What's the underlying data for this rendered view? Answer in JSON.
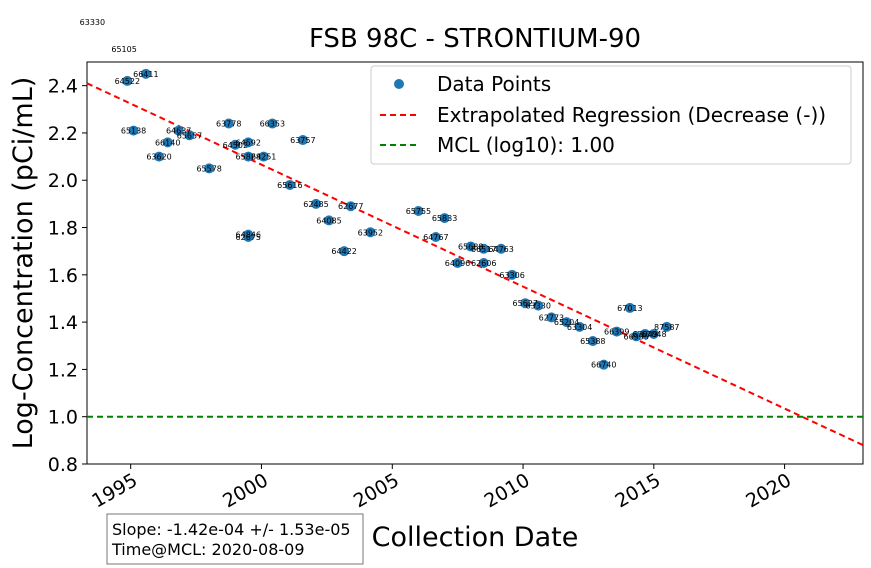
{
  "chart_data": {
    "type": "scatter",
    "title": "FSB 98C - STRONTIUM-90",
    "xlabel": "Collection Date",
    "ylabel": "Log-Concentration (pCi/mL)",
    "xlim": [
      "1993-05-01",
      "2022-12-31"
    ],
    "ylim": [
      0.8,
      2.5
    ],
    "x_ticks": [
      "1995",
      "2000",
      "2005",
      "2010",
      "2015",
      "2020"
    ],
    "y_ticks": [
      "0.8",
      "1.0",
      "1.2",
      "1.4",
      "1.6",
      "1.8",
      "2.0",
      "2.2",
      "2.4"
    ],
    "legend": {
      "placement": "upper-right",
      "entries": [
        "Data Points",
        "Extrapolated Regression (Decrease (-))",
        "MCL (log10): 1.00"
      ]
    },
    "colors": {
      "points": "#1f77b4",
      "regression": "#ff0000",
      "mcl": "#008000"
    },
    "mcl_value": 1.0,
    "regression": {
      "x": [
        "1993-05-01",
        "2022-12-31"
      ],
      "y": [
        2.41,
        0.88
      ]
    },
    "stats": {
      "line1": "Slope: -1.42e-04 +/- 1.53e-05",
      "line2": "Time@MCL: 2020-08-09"
    },
    "offchart_labels": [
      {
        "label": "63330",
        "x": "1993-07-15",
        "y": 2.67
      },
      {
        "label": "65105",
        "x": "1994-10-01",
        "y": 2.556
      }
    ],
    "points": [
      {
        "label": "64522",
        "x": "1994-11-15",
        "y": 2.42
      },
      {
        "label": "66411",
        "x": "1995-08-01",
        "y": 2.45
      },
      {
        "label": "65138",
        "x": "1995-02-10",
        "y": 2.21
      },
      {
        "label": "64637",
        "x": "1996-11-01",
        "y": 2.21
      },
      {
        "label": "65657",
        "x": "1997-04-01",
        "y": 2.19
      },
      {
        "label": "66140",
        "x": "1996-06-01",
        "y": 2.16
      },
      {
        "label": "63620",
        "x": "1996-02-01",
        "y": 2.1
      },
      {
        "label": "63778",
        "x": "1998-10-01",
        "y": 2.24
      },
      {
        "label": "66353",
        "x": "2000-06-01",
        "y": 2.24
      },
      {
        "label": "64502",
        "x": "1999-01-01",
        "y": 2.15
      },
      {
        "label": "64592",
        "x": "1999-07-01",
        "y": 2.16
      },
      {
        "label": "63757",
        "x": "2001-08-01",
        "y": 2.17
      },
      {
        "label": "65828",
        "x": "1999-07-01",
        "y": 2.1
      },
      {
        "label": "64251",
        "x": "2000-02-01",
        "y": 2.1
      },
      {
        "label": "65578",
        "x": "1998-01-01",
        "y": 2.05
      },
      {
        "label": "65616",
        "x": "2001-02-01",
        "y": 1.98
      },
      {
        "label": "62485",
        "x": "2002-02-01",
        "y": 1.9
      },
      {
        "label": "62677",
        "x": "2003-06-01",
        "y": 1.89
      },
      {
        "label": "64085",
        "x": "2002-08-01",
        "y": 1.83
      },
      {
        "label": "64846",
        "x": "1999-07-01",
        "y": 1.77
      },
      {
        "label": "62675",
        "x": "1999-07-01",
        "y": 1.76
      },
      {
        "label": "63952",
        "x": "2004-03-01",
        "y": 1.78
      },
      {
        "label": "64422",
        "x": "2003-03-01",
        "y": 1.7
      },
      {
        "label": "65755",
        "x": "2006-01-01",
        "y": 1.87
      },
      {
        "label": "65833",
        "x": "2007-01-01",
        "y": 1.84
      },
      {
        "label": "64767",
        "x": "2006-09-01",
        "y": 1.76
      },
      {
        "label": "65688",
        "x": "2008-01-01",
        "y": 1.72
      },
      {
        "label": "66517",
        "x": "2008-07-01",
        "y": 1.71
      },
      {
        "label": "64763",
        "x": "2009-03-01",
        "y": 1.71
      },
      {
        "label": "64096",
        "x": "2007-07-01",
        "y": 1.65
      },
      {
        "label": "62606",
        "x": "2008-07-01",
        "y": 1.65
      },
      {
        "label": "63306",
        "x": "2009-08-01",
        "y": 1.6
      },
      {
        "label": "65627",
        "x": "2010-02-01",
        "y": 1.48
      },
      {
        "label": "63330",
        "x": "2010-08-01",
        "y": 1.47
      },
      {
        "label": "62773",
        "x": "2011-02-01",
        "y": 1.42
      },
      {
        "label": "65204",
        "x": "2011-09-01",
        "y": 1.4
      },
      {
        "label": "63304",
        "x": "2012-03-01",
        "y": 1.38
      },
      {
        "label": "65388",
        "x": "2012-09-01",
        "y": 1.32
      },
      {
        "label": "66740",
        "x": "2013-02-01",
        "y": 1.22
      },
      {
        "label": "67013",
        "x": "2014-02-01",
        "y": 1.46
      },
      {
        "label": "66399",
        "x": "2013-08-01",
        "y": 1.36
      },
      {
        "label": "67049",
        "x": "2014-09-01",
        "y": 1.35
      },
      {
        "label": "66935",
        "x": "2014-05-01",
        "y": 1.34
      },
      {
        "label": "67048",
        "x": "2015-01-01",
        "y": 1.35
      },
      {
        "label": "87587",
        "x": "2015-07-01",
        "y": 1.38
      }
    ]
  }
}
